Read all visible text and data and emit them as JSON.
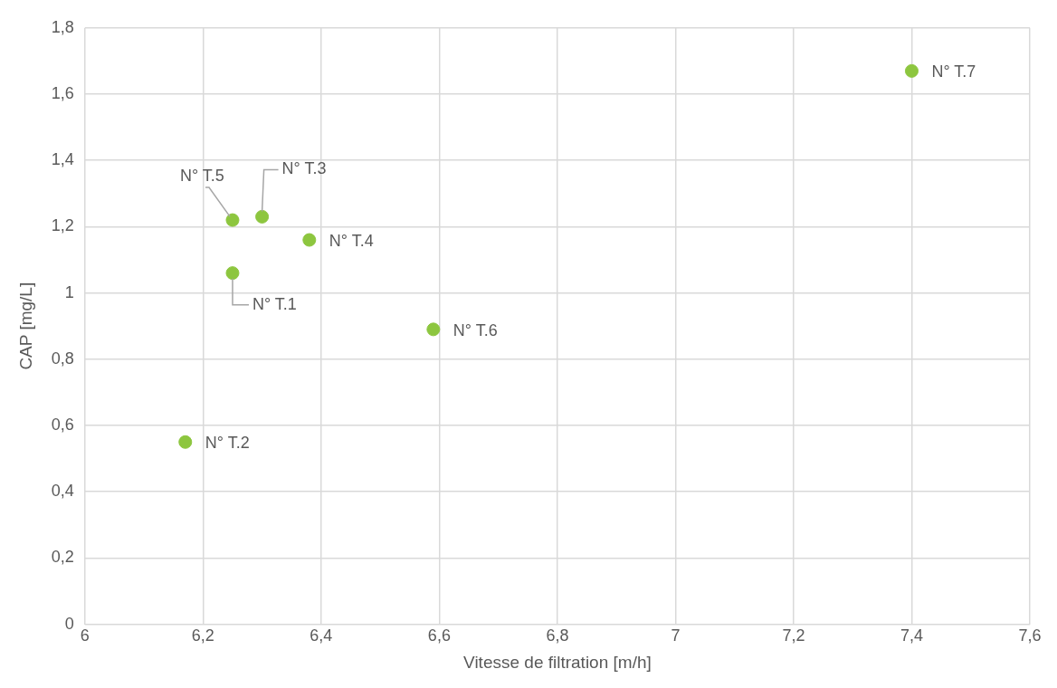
{
  "chart_data": {
    "type": "scatter",
    "xlabel": "Vitesse de filtration [m/h]",
    "ylabel": "CAP [mg/L]",
    "x": [
      6.25,
      6.17,
      6.3,
      6.38,
      6.25,
      6.59,
      7.4
    ],
    "series": [
      {
        "color": "#8dc63f",
        "values": [
          1.06,
          0.55,
          1.23,
          1.16,
          1.22,
          0.89,
          1.67
        ]
      }
    ],
    "xlim": [
      6,
      7.6
    ],
    "xticks": [
      {
        "value": 6,
        "label": "6"
      },
      {
        "value": 6.2,
        "label": "6,2"
      },
      {
        "value": 6.4,
        "label": "6,4"
      },
      {
        "value": 6.6,
        "label": "6,6"
      },
      {
        "value": 6.8,
        "label": "6,8"
      },
      {
        "value": 7,
        "label": "7"
      },
      {
        "value": 7.2,
        "label": "7,2"
      },
      {
        "value": 7.4,
        "label": "7,4"
      },
      {
        "value": 7.6,
        "label": "7,6"
      }
    ],
    "ylim": [
      0,
      1.8
    ],
    "yticks": [
      {
        "value": 0,
        "label": "0"
      },
      {
        "value": 0.2,
        "label": "0,2"
      },
      {
        "value": 0.4,
        "label": "0,4"
      },
      {
        "value": 0.6,
        "label": "0,6"
      },
      {
        "value": 0.8,
        "label": "0,8"
      },
      {
        "value": 1,
        "label": "1"
      },
      {
        "value": 1.2,
        "label": "1,2"
      },
      {
        "value": 1.4,
        "label": "1,4"
      },
      {
        "value": 1.6,
        "label": "1,6"
      },
      {
        "value": 1.8,
        "label": "1,8"
      }
    ],
    "grid": true,
    "legend": false,
    "marker": "circle",
    "annotations": [
      {
        "text": "N° T.1",
        "x": 6.25,
        "y": 1.06
      },
      {
        "text": "N° T.2",
        "x": 6.17,
        "y": 0.55
      },
      {
        "text": "N° T.3",
        "x": 6.3,
        "y": 1.23
      },
      {
        "text": "N° T.4",
        "x": 6.38,
        "y": 1.16
      },
      {
        "text": "N° T.5",
        "x": 6.25,
        "y": 1.22
      },
      {
        "text": "N° T.6",
        "x": 6.59,
        "y": 0.89
      },
      {
        "text": "N° T.7",
        "x": 7.4,
        "y": 1.67
      }
    ]
  }
}
